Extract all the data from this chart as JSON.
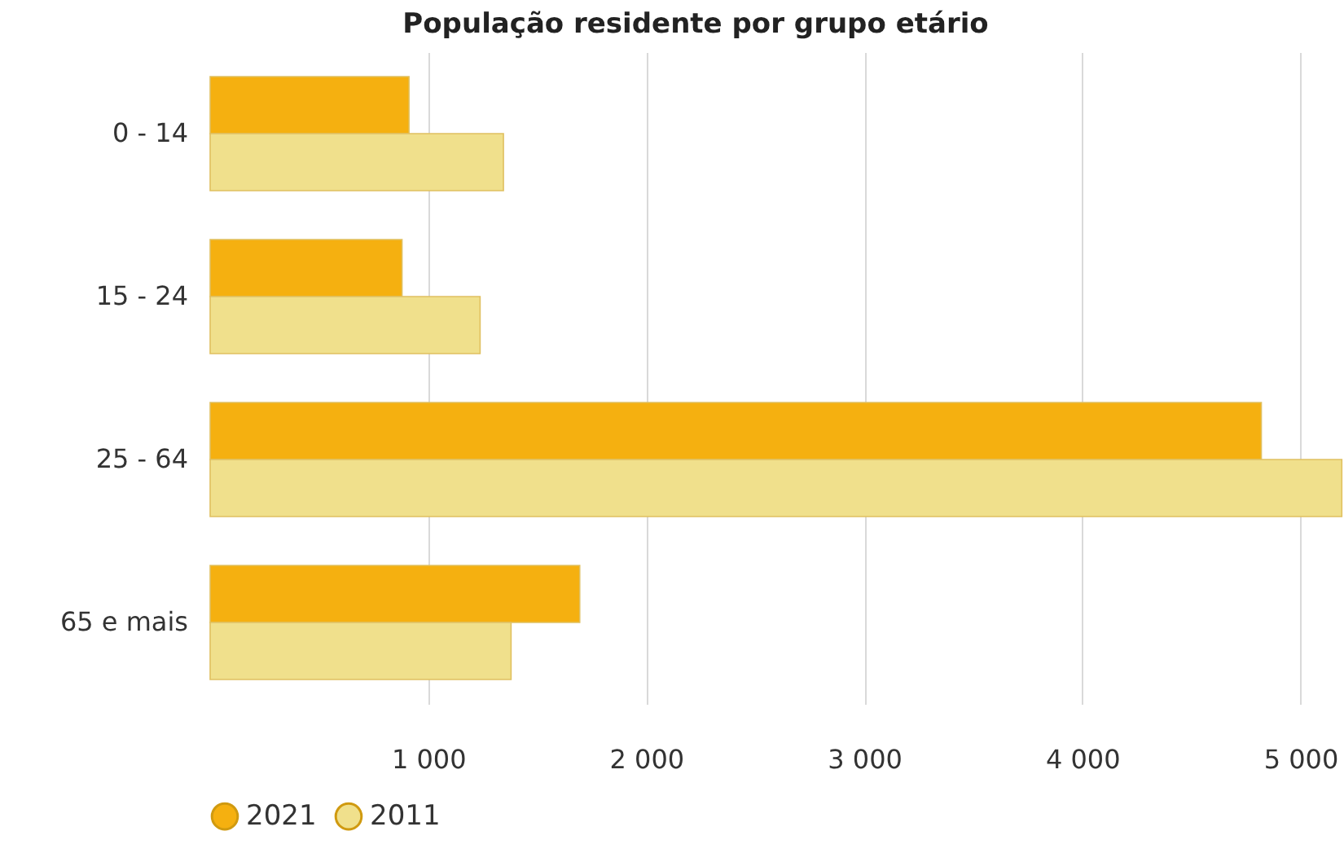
{
  "chart_data": {
    "type": "bar",
    "orientation": "horizontal",
    "title": "População residente por grupo etário",
    "categories": [
      "0 - 14",
      "15 - 24",
      "25 - 64",
      "65 e mais"
    ],
    "series": [
      {
        "name": "2021",
        "color": "#f5b010",
        "values": [
          912,
          880,
          4821,
          1695
        ]
      },
      {
        "name": "2011",
        "color": "#f0e08c",
        "values": [
          1345,
          1238,
          5190,
          1380
        ]
      }
    ],
    "xlim": [
      0,
      5200
    ],
    "xticks": [
      {
        "value": 1000,
        "label": "1 000"
      },
      {
        "value": 2000,
        "label": "2 000"
      },
      {
        "value": 3000,
        "label": "3 000"
      },
      {
        "value": 4000,
        "label": "4 000"
      },
      {
        "value": 5000,
        "label": "5 000"
      }
    ],
    "grid": "x",
    "legend": "bottom"
  }
}
